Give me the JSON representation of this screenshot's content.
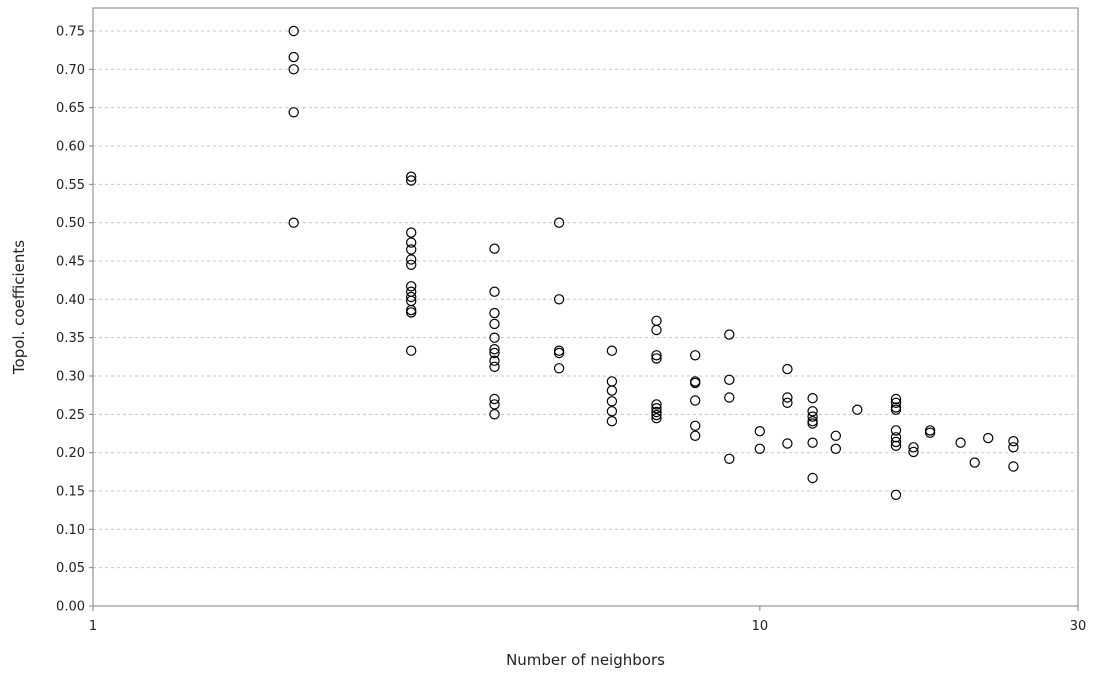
{
  "chart_data": {
    "type": "scatter",
    "title": "",
    "xlabel": "Number of neighbors",
    "ylabel": "Topol. coefficients",
    "x_scale": "log",
    "xlim": [
      1,
      30
    ],
    "ylim": [
      0,
      0.78
    ],
    "x_ticks": [
      "1",
      "10",
      "30"
    ],
    "y_ticks": [
      "0.00",
      "0.05",
      "0.10",
      "0.15",
      "0.20",
      "0.25",
      "0.30",
      "0.35",
      "0.40",
      "0.45",
      "0.50",
      "0.55",
      "0.60",
      "0.65",
      "0.70",
      "0.75"
    ],
    "grid": "horizontal dashed",
    "marker": "hollow circle",
    "colors": {
      "marker": "#000000",
      "grid": "#c8c8c8",
      "axis": "#808080"
    },
    "points": [
      [
        2,
        0.75
      ],
      [
        2,
        0.716
      ],
      [
        2,
        0.7
      ],
      [
        2,
        0.644
      ],
      [
        2,
        0.5
      ],
      [
        3,
        0.56
      ],
      [
        3,
        0.555
      ],
      [
        3,
        0.487
      ],
      [
        3,
        0.474
      ],
      [
        3,
        0.465
      ],
      [
        3,
        0.452
      ],
      [
        3,
        0.445
      ],
      [
        3,
        0.417
      ],
      [
        3,
        0.41
      ],
      [
        3,
        0.403
      ],
      [
        3,
        0.398
      ],
      [
        3,
        0.386
      ],
      [
        3,
        0.383
      ],
      [
        3,
        0.333
      ],
      [
        4,
        0.466
      ],
      [
        4,
        0.41
      ],
      [
        4,
        0.382
      ],
      [
        4,
        0.368
      ],
      [
        4,
        0.35
      ],
      [
        4,
        0.335
      ],
      [
        4,
        0.33
      ],
      [
        4,
        0.32
      ],
      [
        4,
        0.312
      ],
      [
        4,
        0.27
      ],
      [
        4,
        0.263
      ],
      [
        4,
        0.25
      ],
      [
        5,
        0.5
      ],
      [
        5,
        0.4
      ],
      [
        5,
        0.333
      ],
      [
        5,
        0.33
      ],
      [
        5,
        0.31
      ],
      [
        6,
        0.333
      ],
      [
        6,
        0.293
      ],
      [
        6,
        0.281
      ],
      [
        6,
        0.267
      ],
      [
        6,
        0.254
      ],
      [
        6,
        0.241
      ],
      [
        7,
        0.372
      ],
      [
        7,
        0.36
      ],
      [
        7,
        0.327
      ],
      [
        7,
        0.323
      ],
      [
        7,
        0.263
      ],
      [
        7,
        0.258
      ],
      [
        7,
        0.253
      ],
      [
        7,
        0.249
      ],
      [
        7,
        0.245
      ],
      [
        8,
        0.327
      ],
      [
        8,
        0.293
      ],
      [
        8,
        0.291
      ],
      [
        8,
        0.268
      ],
      [
        8,
        0.235
      ],
      [
        8,
        0.222
      ],
      [
        9,
        0.354
      ],
      [
        9,
        0.295
      ],
      [
        9,
        0.272
      ],
      [
        9,
        0.192
      ],
      [
        10,
        0.228
      ],
      [
        10,
        0.205
      ],
      [
        11,
        0.309
      ],
      [
        11,
        0.272
      ],
      [
        11,
        0.265
      ],
      [
        11,
        0.212
      ],
      [
        12,
        0.271
      ],
      [
        12,
        0.254
      ],
      [
        12,
        0.247
      ],
      [
        12,
        0.241
      ],
      [
        12,
        0.238
      ],
      [
        12,
        0.213
      ],
      [
        12,
        0.167
      ],
      [
        13,
        0.222
      ],
      [
        13,
        0.205
      ],
      [
        14,
        0.256
      ],
      [
        16,
        0.27
      ],
      [
        16,
        0.265
      ],
      [
        16,
        0.259
      ],
      [
        16,
        0.256
      ],
      [
        16,
        0.229
      ],
      [
        16,
        0.22
      ],
      [
        16,
        0.214
      ],
      [
        16,
        0.209
      ],
      [
        16,
        0.145
      ],
      [
        17,
        0.207
      ],
      [
        17,
        0.201
      ],
      [
        18,
        0.229
      ],
      [
        18,
        0.226
      ],
      [
        20,
        0.213
      ],
      [
        21,
        0.187
      ],
      [
        22,
        0.219
      ],
      [
        24,
        0.215
      ],
      [
        24,
        0.207
      ],
      [
        24,
        0.182
      ]
    ]
  }
}
